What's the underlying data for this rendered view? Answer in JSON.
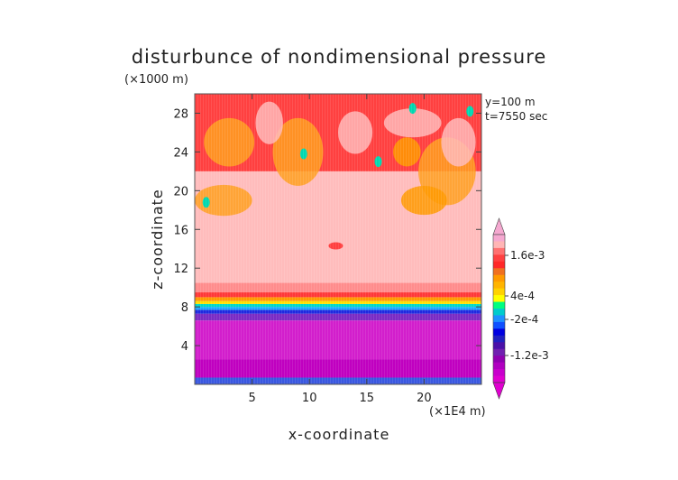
{
  "chart_data": {
    "type": "heatmap",
    "title": "disturbunce of nondimensional pressure",
    "xlabel": "x-coordinate",
    "ylabel": "z-coordinate",
    "x_unit": "(×1E4 m)",
    "y_unit": "(×1000 m)",
    "annotations": [
      "y=100  m",
      "t=7550 sec"
    ],
    "xlim": [
      0,
      25
    ],
    "ylim": [
      0,
      30
    ],
    "xticks": [
      5,
      10,
      15,
      20
    ],
    "yticks": [
      4,
      8,
      12,
      16,
      20,
      24,
      28
    ],
    "colorbar": {
      "labels": [
        "1.6e-3",
        "4e-4",
        "-2e-4",
        "-1.2e-3"
      ],
      "colors": [
        "#f5a8d0",
        "#ffb5b5",
        "#ff7070",
        "#ff4040",
        "#ff2828",
        "#f07020",
        "#ff9a00",
        "#ffb400",
        "#ffd200",
        "#ffff00",
        "#00ff80",
        "#00cccc",
        "#1e90ff",
        "#1050ff",
        "#0000e0",
        "#2020c0",
        "#4a10a8",
        "#7020b0",
        "#9000b0",
        "#b000c0",
        "#c800cc",
        "#e000d0"
      ]
    },
    "levels": [
      {
        "z_from": 0,
        "z_to": 0.7,
        "level": "-1.2e-3 to -2e-4",
        "color": "#3a58e0"
      },
      {
        "z_from": 0.7,
        "z_to": 2.6,
        "level": "< -1.2e-3",
        "color": "#c000c0"
      },
      {
        "z_from": 2.6,
        "z_to": 6.6,
        "level": "< -1.2e-3",
        "color": "#d21ecc"
      },
      {
        "z_from": 6.6,
        "z_to": 7.3,
        "level": "-1.2e-3",
        "color": "#7a2bc4"
      },
      {
        "z_from": 7.3,
        "z_to": 7.7,
        "level": "-2e-4",
        "color": "#1e2ae0"
      },
      {
        "z_from": 7.7,
        "z_to": 8.0,
        "level": "-2e-4",
        "color": "#1aa8ff"
      },
      {
        "z_from": 8.0,
        "z_to": 8.3,
        "level": "0",
        "color": "#00d8c8"
      },
      {
        "z_from": 8.3,
        "z_to": 8.6,
        "level": "4e-4",
        "color": "#ffe000"
      },
      {
        "z_from": 8.6,
        "z_to": 9.0,
        "level": "4e-4",
        "color": "#ff9a00"
      },
      {
        "z_from": 9.0,
        "z_to": 9.5,
        "level": "1.6e-3",
        "color": "#ff3838"
      },
      {
        "z_from": 9.5,
        "z_to": 10.5,
        "level": "1.6e-3",
        "color": "#ff8c8c"
      },
      {
        "z_from": 10.5,
        "z_to": 22.0,
        "level": "> 1.6e-3",
        "color": "#ffbcbc"
      },
      {
        "z_from": 22.0,
        "z_to": 30.0,
        "level": "1.6e-3",
        "color": "#ff4040"
      }
    ]
  }
}
